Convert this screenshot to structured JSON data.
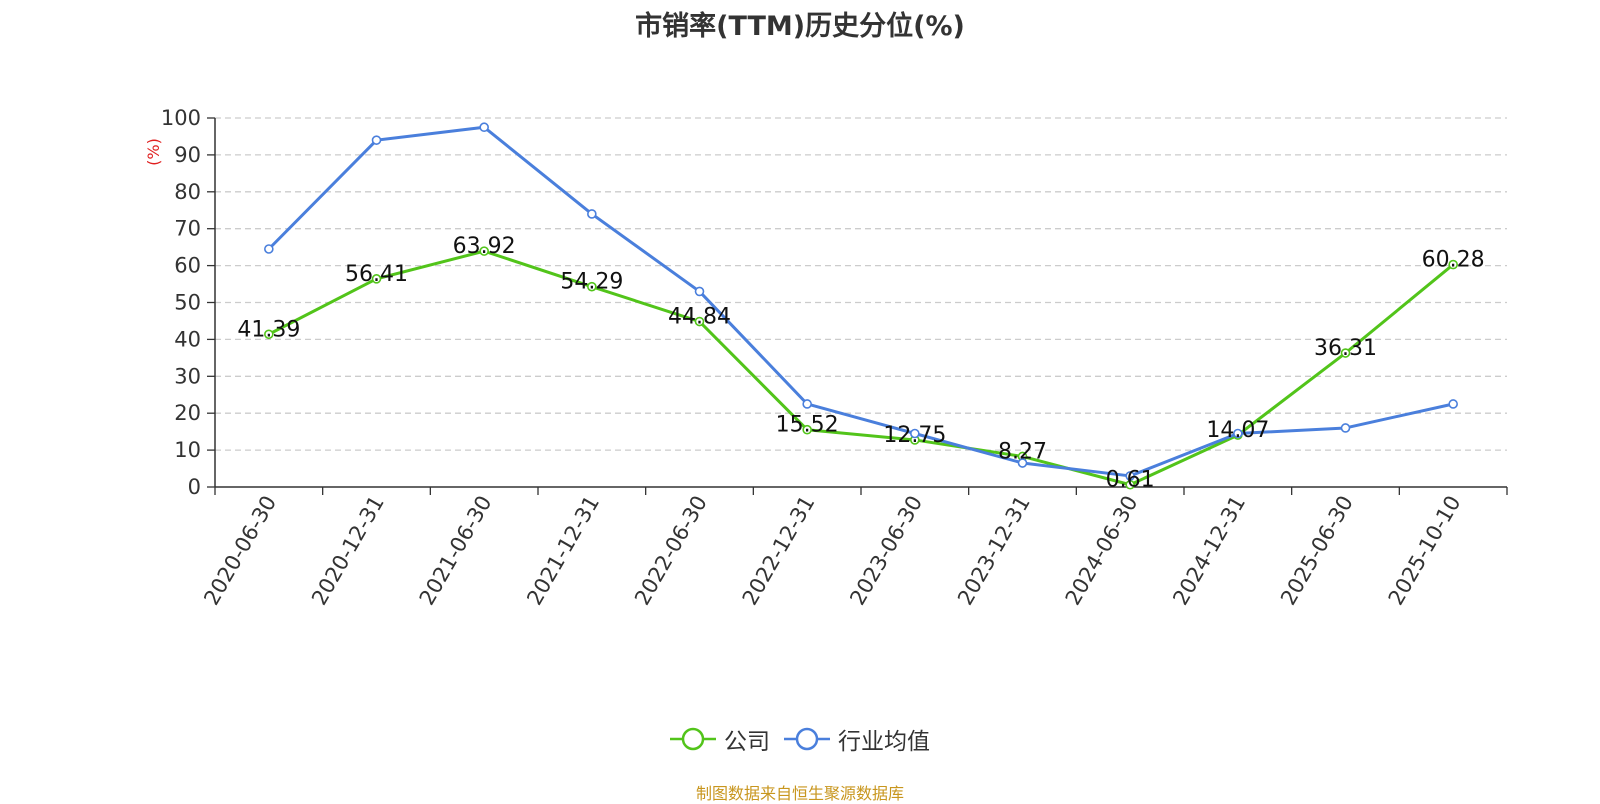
{
  "chart_data": {
    "type": "line",
    "title": "市销率(TTM)历史分位(%)",
    "ylabel": "(%)",
    "xlabel": "",
    "categories": [
      "2020-06-30",
      "2020-12-31",
      "2021-06-30",
      "2021-12-31",
      "2022-06-30",
      "2022-12-31",
      "2023-06-30",
      "2023-12-31",
      "2024-06-30",
      "2024-12-31",
      "2025-06-30",
      "2025-10-10"
    ],
    "ylim": [
      0,
      100
    ],
    "yticks": [
      0,
      10,
      20,
      30,
      40,
      50,
      60,
      70,
      80,
      90,
      100
    ],
    "grid": true,
    "legend_position": "bottom",
    "series": [
      {
        "name": "公司",
        "color": "#52c41a",
        "show_labels": true,
        "values": [
          41.39,
          56.41,
          63.92,
          54.29,
          44.84,
          15.52,
          12.75,
          8.27,
          0.61,
          14.07,
          36.31,
          60.28
        ],
        "labels": [
          "41.39",
          "56.41",
          "63.92",
          "54.29",
          "44.84",
          "15.52",
          "12.75",
          "8.27",
          "0.61",
          "14.07",
          "36.31",
          "60.28"
        ]
      },
      {
        "name": "行业均值",
        "color": "#4a7fdc",
        "show_labels": false,
        "values": [
          64.5,
          94,
          97.5,
          74,
          53,
          22.5,
          14.5,
          6.5,
          3,
          14.5,
          16,
          22.5
        ]
      }
    ]
  },
  "source": "制图数据来自恒生聚源数据库"
}
